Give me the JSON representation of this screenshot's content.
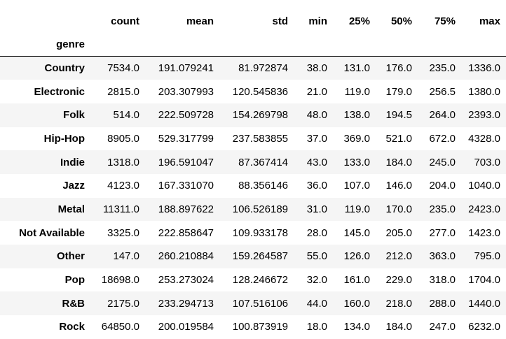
{
  "table": {
    "index_name": "genre",
    "columns": [
      "count",
      "mean",
      "std",
      "min",
      "25%",
      "50%",
      "75%",
      "max"
    ],
    "rows": [
      {
        "index": "Country",
        "cells": [
          "7534.0",
          "191.079241",
          "81.972874",
          "38.0",
          "131.0",
          "176.0",
          "235.0",
          "1336.0"
        ]
      },
      {
        "index": "Electronic",
        "cells": [
          "2815.0",
          "203.307993",
          "120.545836",
          "21.0",
          "119.0",
          "179.0",
          "256.5",
          "1380.0"
        ]
      },
      {
        "index": "Folk",
        "cells": [
          "514.0",
          "222.509728",
          "154.269798",
          "48.0",
          "138.0",
          "194.5",
          "264.0",
          "2393.0"
        ]
      },
      {
        "index": "Hip-Hop",
        "cells": [
          "8905.0",
          "529.317799",
          "237.583855",
          "37.0",
          "369.0",
          "521.0",
          "672.0",
          "4328.0"
        ]
      },
      {
        "index": "Indie",
        "cells": [
          "1318.0",
          "196.591047",
          "87.367414",
          "43.0",
          "133.0",
          "184.0",
          "245.0",
          "703.0"
        ]
      },
      {
        "index": "Jazz",
        "cells": [
          "4123.0",
          "167.331070",
          "88.356146",
          "36.0",
          "107.0",
          "146.0",
          "204.0",
          "1040.0"
        ]
      },
      {
        "index": "Metal",
        "cells": [
          "11311.0",
          "188.897622",
          "106.526189",
          "31.0",
          "119.0",
          "170.0",
          "235.0",
          "2423.0"
        ]
      },
      {
        "index": "Not Available",
        "cells": [
          "3325.0",
          "222.858647",
          "109.933178",
          "28.0",
          "145.0",
          "205.0",
          "277.0",
          "1423.0"
        ]
      },
      {
        "index": "Other",
        "cells": [
          "147.0",
          "260.210884",
          "159.264587",
          "55.0",
          "126.0",
          "212.0",
          "363.0",
          "795.0"
        ]
      },
      {
        "index": "Pop",
        "cells": [
          "18698.0",
          "253.273024",
          "128.246672",
          "32.0",
          "161.0",
          "229.0",
          "318.0",
          "1704.0"
        ]
      },
      {
        "index": "R&B",
        "cells": [
          "2175.0",
          "233.294713",
          "107.516106",
          "44.0",
          "160.0",
          "218.0",
          "288.0",
          "1440.0"
        ]
      },
      {
        "index": "Rock",
        "cells": [
          "64850.0",
          "200.019584",
          "100.873919",
          "18.0",
          "134.0",
          "184.0",
          "247.0",
          "6232.0"
        ]
      }
    ]
  }
}
